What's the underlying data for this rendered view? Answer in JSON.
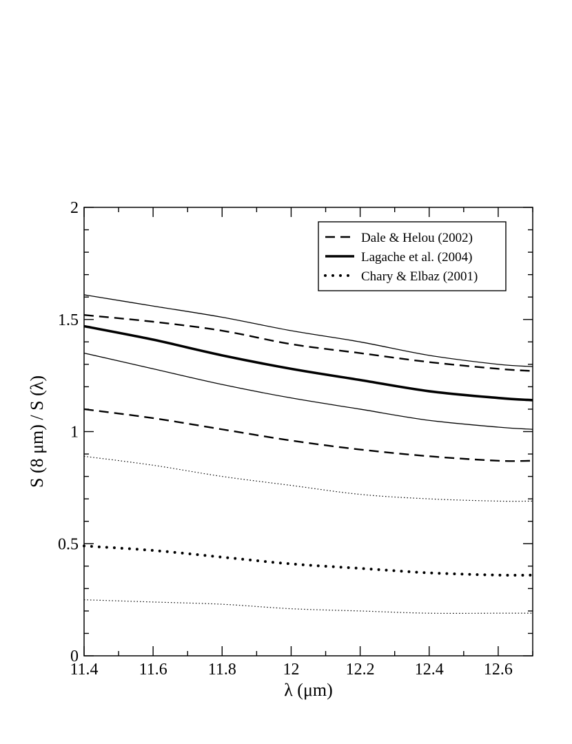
{
  "chart_data": {
    "type": "line",
    "xlabel": "λ (μm)",
    "ylabel": "S (8 μm) / S (λ)",
    "xlim": [
      11.4,
      12.7
    ],
    "ylim": [
      0,
      2
    ],
    "x_ticks": [
      11.4,
      11.6,
      11.8,
      12.0,
      12.2,
      12.4,
      12.6
    ],
    "x_tick_labels": [
      "11.4",
      "11.6",
      "11.8",
      "12",
      "12.2",
      "12.4",
      "12.6"
    ],
    "y_ticks": [
      0,
      0.5,
      1,
      1.5,
      2
    ],
    "y_tick_labels": [
      "0",
      "0.5",
      "1",
      "1.5",
      "2"
    ],
    "grid": false,
    "legend_position": "top-right",
    "legend": [
      {
        "label": "Dale & Helou  (2002)",
        "style": "dashed"
      },
      {
        "label": "Lagache et al.  (2004)",
        "style": "thick-solid"
      },
      {
        "label": "Chary & Elbaz (2001)",
        "style": "dotted"
      }
    ],
    "series": [
      {
        "style": "thin-solid",
        "x": [
          11.4,
          11.6,
          11.8,
          12.0,
          12.2,
          12.4,
          12.6,
          12.7
        ],
        "y": [
          1.61,
          1.56,
          1.51,
          1.45,
          1.4,
          1.34,
          1.3,
          1.29
        ]
      },
      {
        "style": "dashed",
        "x": [
          11.4,
          11.6,
          11.8,
          12.0,
          12.2,
          12.4,
          12.6,
          12.7
        ],
        "y": [
          1.52,
          1.49,
          1.45,
          1.39,
          1.35,
          1.31,
          1.28,
          1.27
        ]
      },
      {
        "style": "thick-solid",
        "x": [
          11.4,
          11.6,
          11.8,
          12.0,
          12.2,
          12.4,
          12.6,
          12.7
        ],
        "y": [
          1.47,
          1.41,
          1.34,
          1.28,
          1.23,
          1.18,
          1.15,
          1.14
        ]
      },
      {
        "style": "thin-solid",
        "x": [
          11.4,
          11.6,
          11.8,
          12.0,
          12.2,
          12.4,
          12.6,
          12.7
        ],
        "y": [
          1.35,
          1.28,
          1.21,
          1.15,
          1.1,
          1.05,
          1.02,
          1.01
        ]
      },
      {
        "style": "dashed",
        "x": [
          11.4,
          11.6,
          11.8,
          12.0,
          12.2,
          12.4,
          12.6,
          12.7
        ],
        "y": [
          1.1,
          1.06,
          1.01,
          0.96,
          0.92,
          0.89,
          0.87,
          0.87
        ]
      },
      {
        "style": "thin-dotted",
        "x": [
          11.4,
          11.6,
          11.8,
          12.0,
          12.2,
          12.4,
          12.6,
          12.7
        ],
        "y": [
          0.89,
          0.85,
          0.8,
          0.76,
          0.72,
          0.7,
          0.69,
          0.69
        ]
      },
      {
        "style": "dotted",
        "x": [
          11.4,
          11.6,
          11.8,
          12.0,
          12.2,
          12.4,
          12.6,
          12.7
        ],
        "y": [
          0.49,
          0.47,
          0.44,
          0.41,
          0.39,
          0.37,
          0.36,
          0.36
        ]
      },
      {
        "style": "thin-dotted",
        "x": [
          11.4,
          11.6,
          11.8,
          12.0,
          12.2,
          12.4,
          12.6,
          12.7
        ],
        "y": [
          0.25,
          0.24,
          0.23,
          0.21,
          0.2,
          0.19,
          0.19,
          0.19
        ]
      }
    ]
  }
}
